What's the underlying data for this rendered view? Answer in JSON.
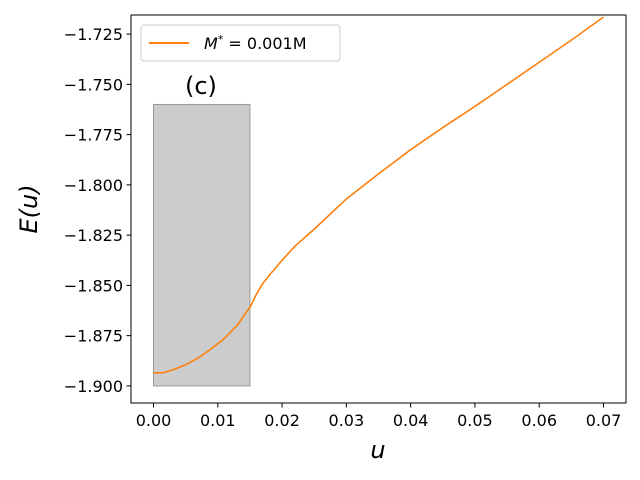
{
  "chart_data": {
    "type": "line",
    "panel_label": "(c)",
    "xlabel": "u",
    "ylabel": "E(u)",
    "xlim": [
      -0.0035,
      0.0735
    ],
    "ylim": [
      -1.9085,
      -1.7155
    ],
    "xticks": [
      0.0,
      0.01,
      0.02,
      0.03,
      0.04,
      0.05,
      0.06,
      0.07
    ],
    "xtick_labels": [
      "0.00",
      "0.01",
      "0.02",
      "0.03",
      "0.04",
      "0.05",
      "0.06",
      "0.07"
    ],
    "yticks": [
      -1.9,
      -1.875,
      -1.85,
      -1.825,
      -1.8,
      -1.775,
      -1.75,
      -1.725
    ],
    "ytick_labels": [
      "−1.900",
      "−1.875",
      "−1.850",
      "−1.825",
      "−1.800",
      "−1.775",
      "−1.750",
      "−1.725"
    ],
    "legend": {
      "placement": "top-left",
      "entries": [
        {
          "prefix": "M",
          "superscript": "*",
          "suffix": " = 0.001M",
          "color": "#ff7f0e"
        }
      ]
    },
    "shaded_region": {
      "x": [
        0.0,
        0.015
      ],
      "y": [
        -1.9,
        -1.76
      ],
      "color": "#cccccc"
    },
    "series": [
      {
        "color": "#ff7f0e",
        "x": [
          0.0,
          0.0015,
          0.003,
          0.005,
          0.007,
          0.009,
          0.011,
          0.013,
          0.0145,
          0.015,
          0.016,
          0.017,
          0.018,
          0.02,
          0.022,
          0.025,
          0.03,
          0.035,
          0.04,
          0.045,
          0.05,
          0.055,
          0.06,
          0.065,
          0.07
        ],
        "y": [
          -1.8935,
          -1.8935,
          -1.892,
          -1.8895,
          -1.886,
          -1.8815,
          -1.8765,
          -1.87,
          -1.863,
          -1.861,
          -1.8545,
          -1.849,
          -1.845,
          -1.8375,
          -1.8305,
          -1.822,
          -1.807,
          -1.7945,
          -1.7825,
          -1.7715,
          -1.761,
          -1.75,
          -1.739,
          -1.728,
          -1.7165
        ]
      }
    ]
  }
}
